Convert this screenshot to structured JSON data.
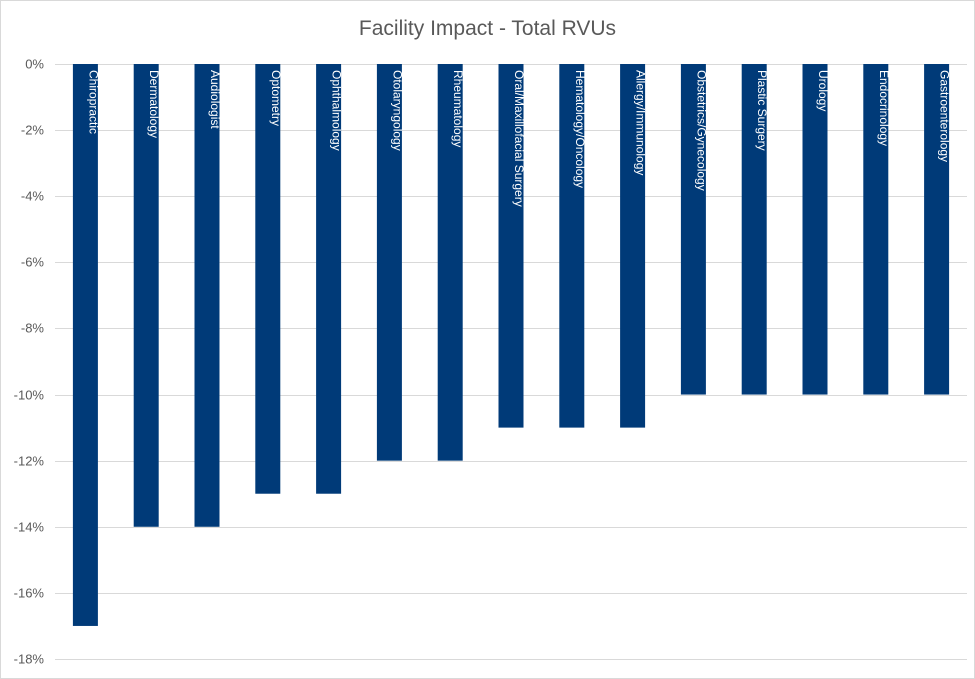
{
  "chart_data": {
    "type": "bar",
    "title": "Facility Impact - Total RVUs",
    "xlabel": "",
    "ylabel": "",
    "ylim": [
      -18,
      0
    ],
    "yticks": [
      0,
      -2,
      -4,
      -6,
      -8,
      -10,
      -12,
      -14,
      -16,
      -18
    ],
    "ytick_labels": [
      "0%",
      "-2%",
      "-4%",
      "-6%",
      "-8%",
      "-10%",
      "-12%",
      "-14%",
      "-16%",
      "-18%"
    ],
    "categories": [
      "Chiropractic",
      "Dermatology",
      "Audiologist",
      "Optometry",
      "Ophthalmology",
      "Otolaryngology",
      "Rheumatology",
      "Oral/Maxillofacial Surgery",
      "Hematology/Oncology",
      "Allergy/Immunology",
      "Obstetrics/Gynecology",
      "Plastic Surgery",
      "Urology",
      "Endocrinology",
      "Gastroenterology"
    ],
    "values": [
      -17,
      -14,
      -14,
      -13,
      -13,
      -12,
      -12,
      -11,
      -11,
      -11,
      -10,
      -10,
      -10,
      -10,
      -10
    ],
    "bar_color": "#003a78",
    "grid": true,
    "legend": "none",
    "category_labels_inside_bars": true
  }
}
